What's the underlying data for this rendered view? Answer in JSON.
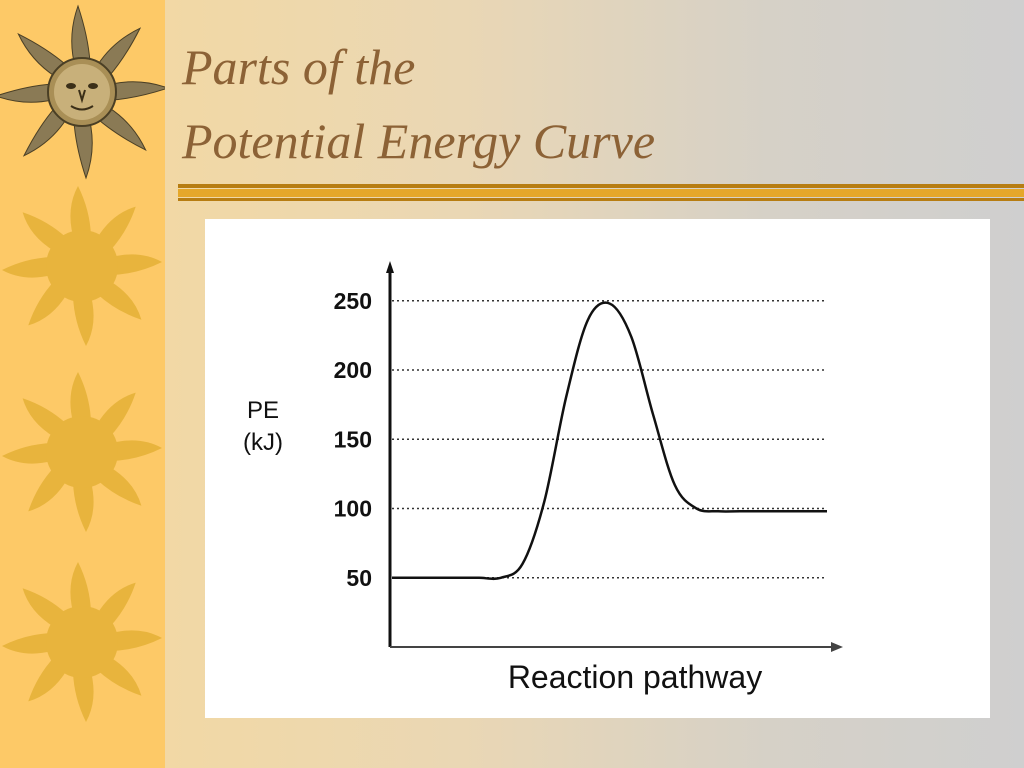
{
  "slide": {
    "title_line1": "Parts of the",
    "title_line2": "Potential Energy Curve",
    "accent_title": "#8c6236",
    "accent_strip": "#fdc967",
    "accent_rule": "#d49a1c",
    "ornaments": [
      "sun-face-icon",
      "sun-icon",
      "sun-icon",
      "sun-icon"
    ]
  },
  "chart_data": {
    "type": "line",
    "ylabel_line1": "PE",
    "ylabel_line2": "(kJ)",
    "xlabel": "Reaction pathway",
    "yticks": [
      50,
      100,
      150,
      200,
      250
    ],
    "ylim": [
      0,
      260
    ],
    "grid": "horizontal-dotted",
    "series": [
      {
        "x": [
          0,
          0.05,
          0.1,
          0.15,
          0.2,
          0.25,
          0.3,
          0.35,
          0.4,
          0.45,
          0.5,
          0.55,
          0.6,
          0.65,
          0.7,
          0.75,
          0.8,
          0.85,
          0.9,
          0.95,
          1
        ],
        "y": [
          50,
          50,
          50,
          50,
          50,
          50,
          60,
          105,
          180,
          236,
          248,
          224,
          168,
          117,
          100,
          98,
          98,
          98,
          98,
          98,
          98
        ]
      }
    ]
  }
}
